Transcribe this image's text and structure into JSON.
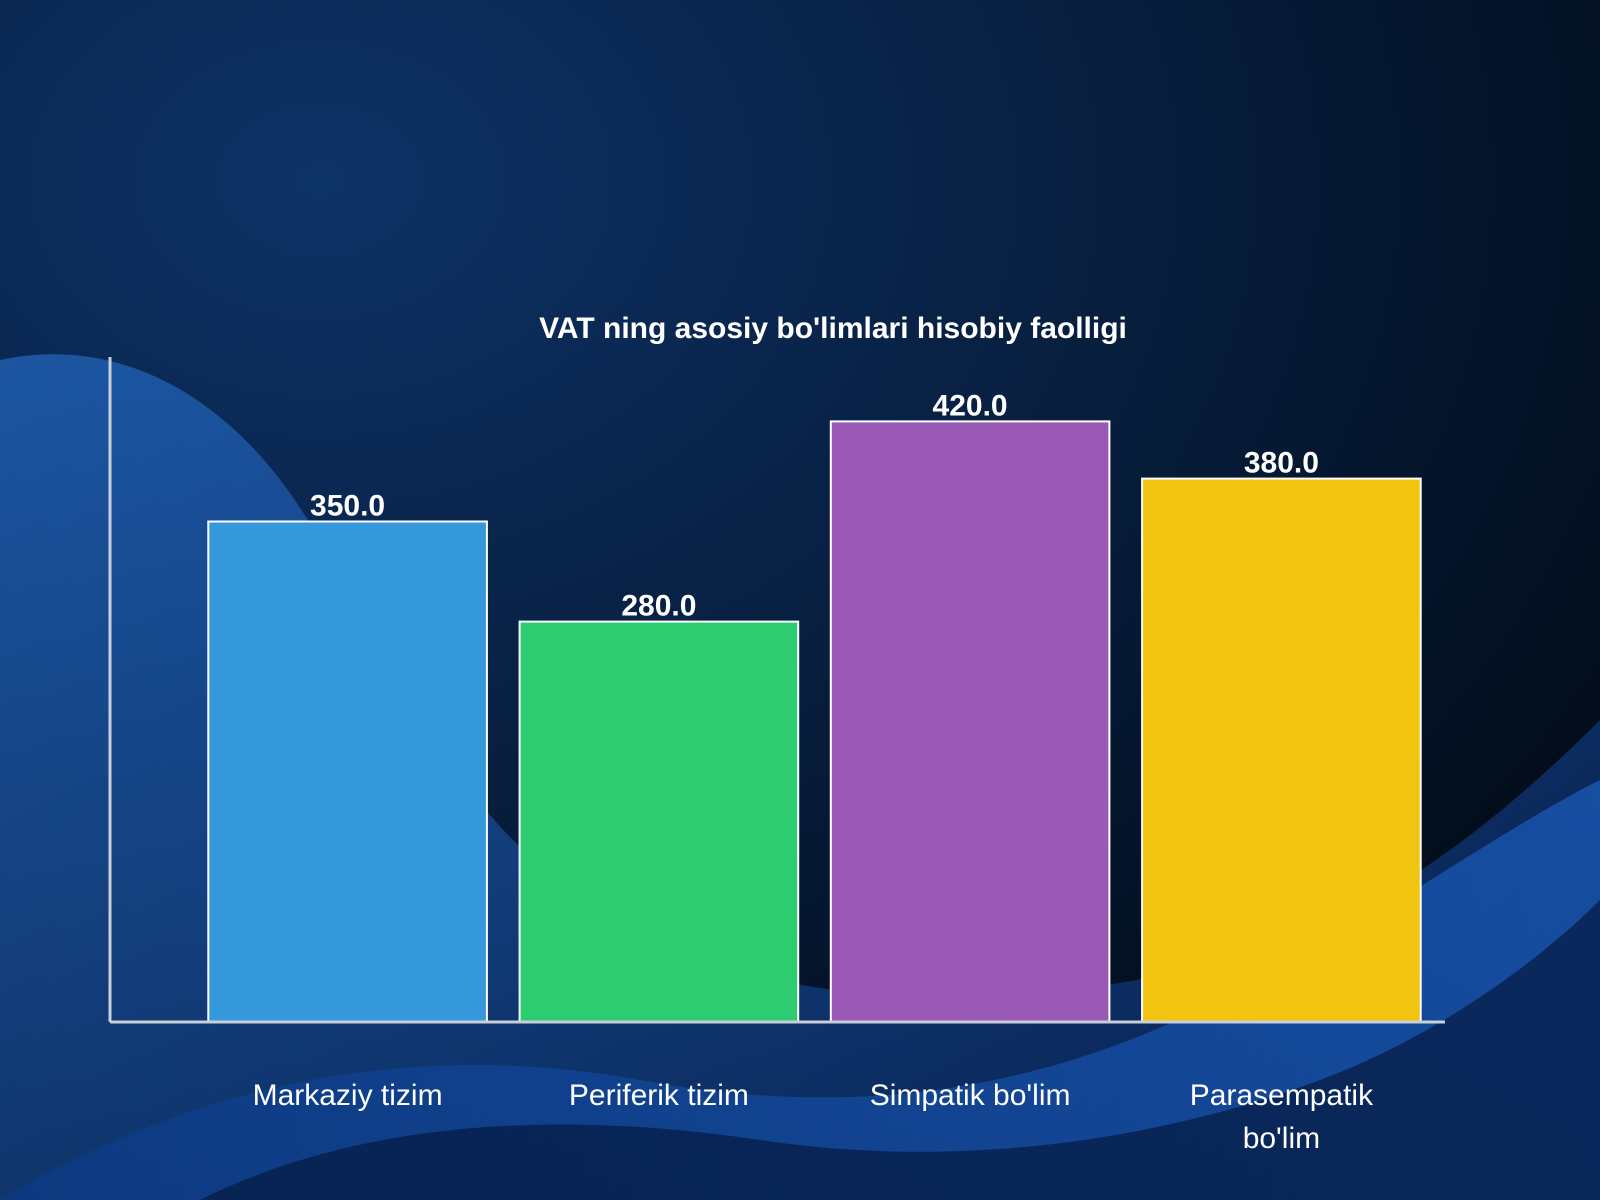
{
  "chart_data": {
    "type": "bar",
    "title": "VAT ning asosiy bo'limlari hisobiy faolligi",
    "xlabel": "",
    "ylabel": "",
    "categories": [
      "Markaziy tizim",
      "Periferik tizim",
      "Simpatik bo'lim",
      "Parasempatik bo'lim"
    ],
    "category_lines": [
      [
        "Markaziy tizim"
      ],
      [
        "Periferik tizim"
      ],
      [
        "Simpatik bo'lim"
      ],
      [
        "Parasempatik",
        "bo'lim"
      ]
    ],
    "values": [
      350.0,
      280.0,
      420.0,
      380.0
    ],
    "value_labels": [
      "350.0",
      "280.0",
      "420.0",
      "380.0"
    ],
    "colors": [
      "#3498db",
      "#2ecc71",
      "#9b59b6",
      "#f1c40f"
    ],
    "ylim": [
      0,
      465
    ],
    "grid": false,
    "legend": "none"
  },
  "theme": {
    "background_top": "#0b2a55",
    "background_bottom": "#02070f",
    "wave_color": "#1a5fc8",
    "text_color": "#ffffff",
    "axis_color": "#c9cfd8"
  }
}
